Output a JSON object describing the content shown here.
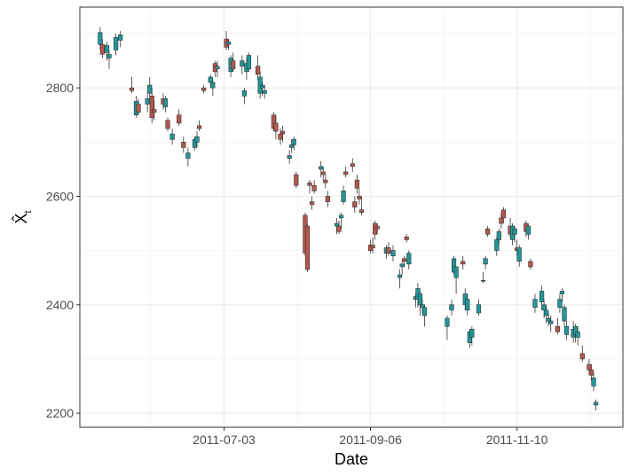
{
  "chart_data": {
    "type": "candlestick",
    "x_label": "Date",
    "y_label": {
      "main": "X̂",
      "subscript": "t"
    },
    "up_color": "#21979a",
    "down_color": "#b4574d",
    "xlim": [
      "2011-04-30",
      "2011-12-27"
    ],
    "xticks": [
      "2011-07-03",
      "2011-09-06",
      "2011-11-10"
    ],
    "ylim": [
      2174,
      2949
    ],
    "yticks": [
      2200,
      2400,
      2600,
      2800
    ],
    "grid": true,
    "x": [
      "2011-05-09",
      "2011-05-10",
      "2011-05-12",
      "2011-05-13",
      "2011-05-16",
      "2011-05-18",
      "2011-05-23",
      "2011-05-25",
      "2011-05-26",
      "2011-05-30",
      "2011-05-31",
      "2011-06-01",
      "2011-06-02",
      "2011-06-06",
      "2011-06-07",
      "2011-06-08",
      "2011-06-10",
      "2011-06-13",
      "2011-06-15",
      "2011-06-17",
      "2011-06-20",
      "2011-06-21",
      "2011-06-22",
      "2011-06-24",
      "2011-06-27",
      "2011-06-28",
      "2011-06-29",
      "2011-06-30",
      "2011-07-04",
      "2011-07-05",
      "2011-07-06",
      "2011-07-07",
      "2011-07-11",
      "2011-07-12",
      "2011-07-13",
      "2011-07-14",
      "2011-07-18",
      "2011-07-19",
      "2011-07-20",
      "2011-07-21",
      "2011-07-25",
      "2011-07-26",
      "2011-07-28",
      "2011-07-29",
      "2011-08-01",
      "2011-08-02",
      "2011-08-03",
      "2011-08-04",
      "2011-08-08",
      "2011-08-09",
      "2011-08-10",
      "2011-08-11",
      "2011-08-12",
      "2011-08-15",
      "2011-08-16",
      "2011-08-17",
      "2011-08-18",
      "2011-08-22",
      "2011-08-23",
      "2011-08-24",
      "2011-08-25",
      "2011-08-26",
      "2011-08-29",
      "2011-08-30",
      "2011-08-31",
      "2011-09-01",
      "2011-09-02",
      "2011-09-06",
      "2011-09-07",
      "2011-09-08",
      "2011-09-09",
      "2011-09-13",
      "2011-09-14",
      "2011-09-16",
      "2011-09-19",
      "2011-09-20",
      "2011-09-21",
      "2011-09-22",
      "2011-09-23",
      "2011-09-26",
      "2011-09-27",
      "2011-09-28",
      "2011-09-29",
      "2011-09-30",
      "2011-10-10",
      "2011-10-12",
      "2011-10-13",
      "2011-10-14",
      "2011-10-17",
      "2011-10-18",
      "2011-10-19",
      "2011-10-20",
      "2011-10-21",
      "2011-10-24",
      "2011-10-26",
      "2011-10-27",
      "2011-10-28",
      "2011-11-01",
      "2011-11-02",
      "2011-11-03",
      "2011-11-04",
      "2011-11-07",
      "2011-11-08",
      "2011-11-09",
      "2011-11-10",
      "2011-11-11",
      "2011-11-14",
      "2011-11-15",
      "2011-11-16",
      "2011-11-18",
      "2011-11-21",
      "2011-11-22",
      "2011-11-23",
      "2011-11-24",
      "2011-11-25",
      "2011-11-28",
      "2011-11-29",
      "2011-11-30",
      "2011-12-01",
      "2011-12-02",
      "2011-12-05",
      "2011-12-06",
      "2011-12-07",
      "2011-12-09",
      "2011-12-12",
      "2011-12-13",
      "2011-12-14",
      "2011-12-15"
    ],
    "open": [
      2880,
      2880,
      2865,
      2855,
      2870,
      2888,
      2800,
      2750,
      2770,
      2770,
      2790,
      2785,
      2760,
      2780,
      2765,
      2740,
      2705,
      2750,
      2700,
      2670,
      2690,
      2700,
      2730,
      2800,
      2810,
      2800,
      2845,
      2835,
      2890,
      2880,
      2830,
      2850,
      2840,
      2785,
      2830,
      2835,
      2840,
      2790,
      2800,
      2790,
      2750,
      2735,
      2715,
      2720,
      2670,
      2690,
      2695,
      2640,
      2565,
      2545,
      2625,
      2590,
      2620,
      2650,
      2645,
      2630,
      2600,
      2545,
      2545,
      2560,
      2590,
      2645,
      2660,
      2590,
      2630,
      2600,
      2575,
      2510,
      2510,
      2550,
      2545,
      2495,
      2505,
      2490,
      2450,
      2470,
      2485,
      2525,
      2475,
      2410,
      2410,
      2400,
      2395,
      2380,
      2360,
      2390,
      2460,
      2450,
      2480,
      2400,
      2390,
      2330,
      2340,
      2385,
      2445,
      2475,
      2540,
      2500,
      2520,
      2560,
      2575,
      2545,
      2520,
      2530,
      2505,
      2480,
      2550,
      2530,
      2480,
      2395,
      2405,
      2390,
      2380,
      2370,
      2365,
      2360,
      2395,
      2420,
      2370,
      2345,
      2340,
      2345,
      2340,
      2310,
      2290,
      2280,
      2250,
      2215
    ],
    "high": [
      2912,
      2890,
      2885,
      2870,
      2900,
      2905,
      2820,
      2785,
      2780,
      2790,
      2820,
      2800,
      2775,
      2790,
      2785,
      2745,
      2725,
      2760,
      2710,
      2690,
      2710,
      2720,
      2740,
      2805,
      2825,
      2815,
      2850,
      2850,
      2905,
      2890,
      2860,
      2865,
      2860,
      2800,
      2855,
      2865,
      2860,
      2830,
      2810,
      2805,
      2755,
      2750,
      2725,
      2730,
      2685,
      2705,
      2710,
      2645,
      2570,
      2550,
      2630,
      2600,
      2630,
      2665,
      2655,
      2640,
      2610,
      2560,
      2555,
      2570,
      2620,
      2655,
      2670,
      2600,
      2640,
      2615,
      2600,
      2520,
      2525,
      2555,
      2550,
      2510,
      2515,
      2510,
      2465,
      2480,
      2490,
      2530,
      2500,
      2420,
      2440,
      2425,
      2410,
      2400,
      2380,
      2410,
      2490,
      2470,
      2490,
      2430,
      2420,
      2355,
      2360,
      2410,
      2460,
      2490,
      2545,
      2525,
      2540,
      2570,
      2580,
      2560,
      2550,
      2545,
      2520,
      2510,
      2555,
      2550,
      2485,
      2420,
      2435,
      2410,
      2400,
      2385,
      2380,
      2375,
      2420,
      2430,
      2400,
      2370,
      2370,
      2365,
      2360,
      2325,
      2300,
      2290,
      2275,
      2225
    ],
    "low": [
      2870,
      2855,
      2850,
      2835,
      2860,
      2875,
      2790,
      2745,
      2750,
      2755,
      2780,
      2735,
      2740,
      2760,
      2755,
      2720,
      2695,
      2730,
      2680,
      2655,
      2685,
      2690,
      2720,
      2790,
      2800,
      2785,
      2820,
      2820,
      2870,
      2870,
      2820,
      2830,
      2825,
      2770,
      2815,
      2830,
      2815,
      2780,
      2785,
      2780,
      2720,
      2705,
      2695,
      2700,
      2660,
      2680,
      2685,
      2615,
      2490,
      2460,
      2605,
      2575,
      2605,
      2635,
      2630,
      2615,
      2580,
      2530,
      2530,
      2540,
      2585,
      2635,
      2645,
      2570,
      2605,
      2585,
      2565,
      2495,
      2495,
      2520,
      2530,
      2485,
      2490,
      2480,
      2430,
      2455,
      2470,
      2515,
      2465,
      2395,
      2395,
      2380,
      2385,
      2360,
      2335,
      2380,
      2455,
      2420,
      2465,
      2390,
      2380,
      2320,
      2325,
      2380,
      2440,
      2465,
      2525,
      2490,
      2510,
      2540,
      2550,
      2525,
      2510,
      2515,
      2490,
      2470,
      2525,
      2520,
      2465,
      2385,
      2390,
      2375,
      2365,
      2360,
      2350,
      2345,
      2385,
      2405,
      2360,
      2335,
      2330,
      2330,
      2325,
      2295,
      2270,
      2260,
      2240,
      2205
    ],
    "close": [
      2902,
      2862,
      2878,
      2862,
      2893,
      2898,
      2795,
      2775,
      2755,
      2780,
      2805,
      2745,
      2755,
      2770,
      2780,
      2725,
      2715,
      2735,
      2690,
      2680,
      2705,
      2710,
      2725,
      2795,
      2820,
      2810,
      2830,
      2840,
      2875,
      2885,
      2855,
      2835,
      2850,
      2795,
      2845,
      2860,
      2825,
      2820,
      2805,
      2795,
      2725,
      2720,
      2705,
      2715,
      2675,
      2695,
      2705,
      2620,
      2495,
      2465,
      2620,
      2585,
      2610,
      2655,
      2640,
      2625,
      2590,
      2550,
      2535,
      2565,
      2610,
      2640,
      2655,
      2580,
      2615,
      2595,
      2570,
      2500,
      2505,
      2530,
      2540,
      2505,
      2495,
      2500,
      2455,
      2475,
      2480,
      2520,
      2495,
      2415,
      2430,
      2420,
      2400,
      2395,
      2375,
      2400,
      2485,
      2470,
      2475,
      2420,
      2410,
      2350,
      2355,
      2400,
      2445,
      2485,
      2530,
      2520,
      2535,
      2550,
      2560,
      2530,
      2545,
      2540,
      2500,
      2505,
      2535,
      2545,
      2470,
      2410,
      2425,
      2400,
      2390,
      2375,
      2370,
      2350,
      2410,
      2425,
      2395,
      2360,
      2355,
      2360,
      2350,
      2300,
      2280,
      2270,
      2265,
      2220
    ]
  }
}
